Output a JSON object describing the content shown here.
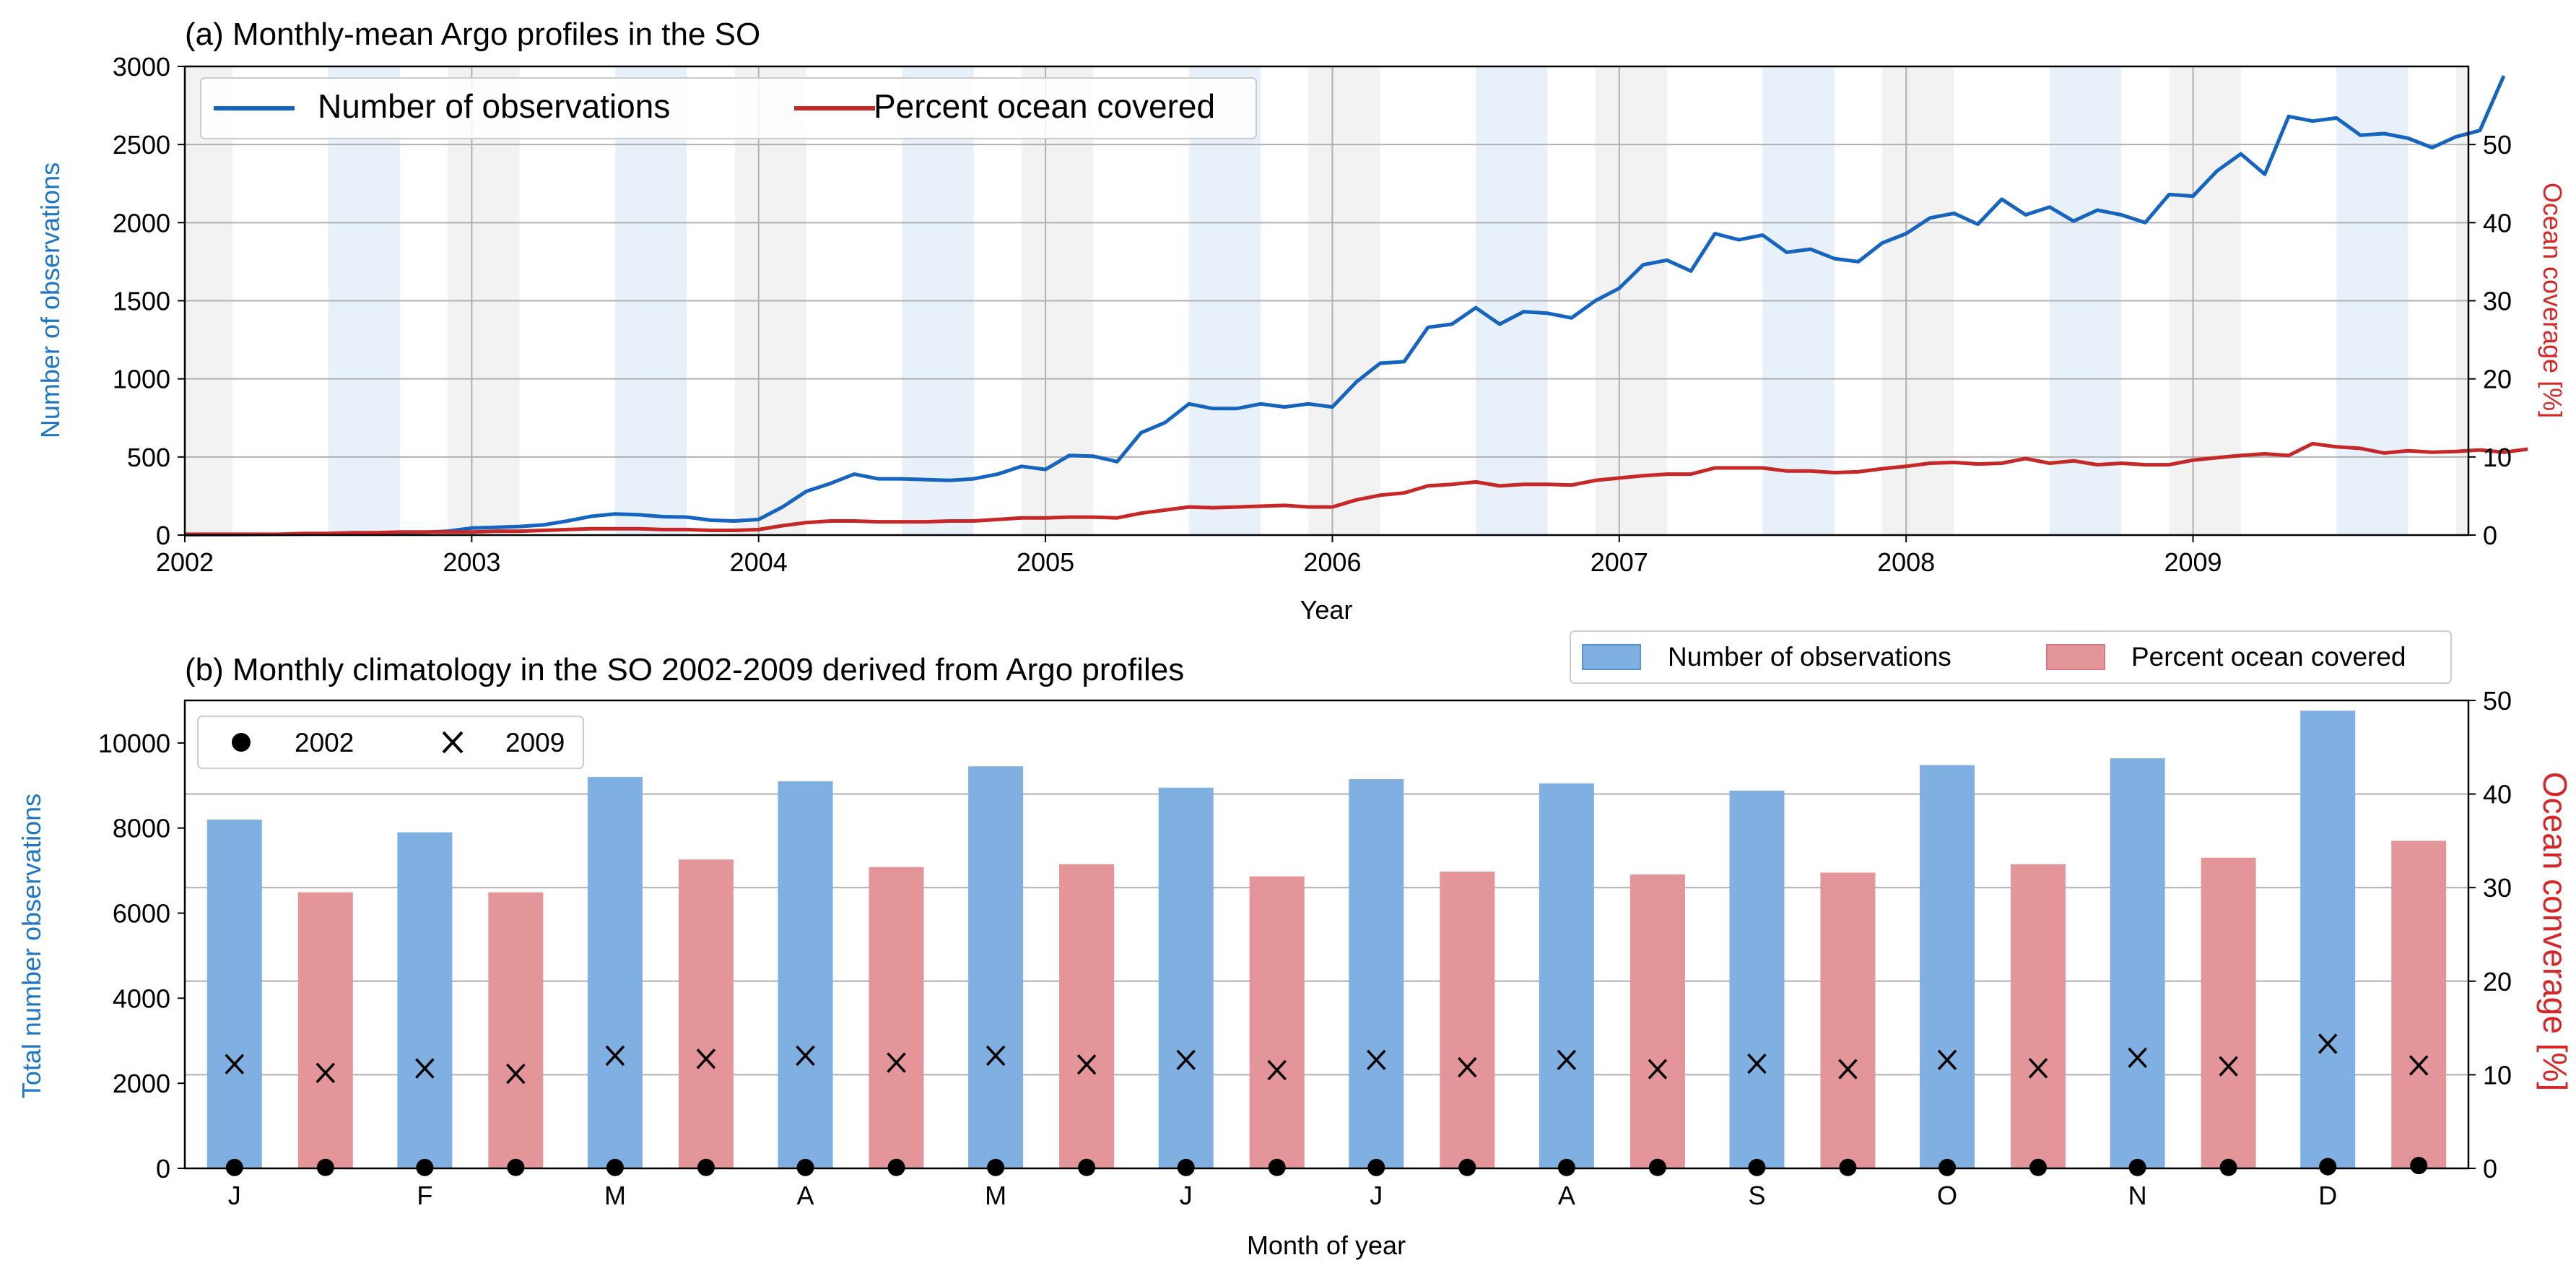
{
  "colors": {
    "obs_line": "#1565c0",
    "cov_line": "#c62828",
    "obs_bar": "#7fb0e1",
    "cov_bar": "#e4959a",
    "left_axis_label": "#1f77c4",
    "right_axis_label": "#d62728",
    "summer_shade": "#f2f2f2",
    "winter_shade": "#e8f1f9",
    "grid": "#b0b0b0"
  },
  "chart_data": [
    {
      "type": "line",
      "title": "(a) Monthly-mean Argo profiles in the SO",
      "xlabel": "Year",
      "ylabel_left": "Number of observations",
      "ylabel_right": "Ocean coverage [%]",
      "xlim": [
        2002.0,
        2009.96
      ],
      "ylim_left": [
        0,
        3000
      ],
      "ylim_right": [
        0,
        60
      ],
      "x_ticks": [
        "2002",
        "2003",
        "2004",
        "2005",
        "2006",
        "2007",
        "2008",
        "2009"
      ],
      "y_ticks_left": [
        "0",
        "500",
        "1000",
        "1500",
        "2000",
        "2500",
        "3000"
      ],
      "y_ticks_right": [
        "0",
        "10",
        "20",
        "30",
        "40",
        "50"
      ],
      "grid": true,
      "legend_position": "top-left",
      "shading": {
        "summer_months": [
          "Dec",
          "Jan",
          "Feb"
        ],
        "winter_months": [
          "Jul",
          "Aug",
          "Sep"
        ]
      },
      "start_month": "2002-01",
      "series": [
        {
          "name": "Number of observations",
          "axis": "left",
          "values": [
            2,
            3,
            3,
            4,
            5,
            6,
            8,
            10,
            12,
            15,
            18,
            25,
            45,
            50,
            55,
            65,
            90,
            120,
            135,
            130,
            118,
            115,
            95,
            90,
            100,
            180,
            280,
            330,
            390,
            360,
            360,
            355,
            350,
            360,
            390,
            440,
            420,
            510,
            505,
            470,
            655,
            720,
            840,
            810,
            810,
            840,
            820,
            840,
            820,
            980,
            1100,
            1110,
            1330,
            1350,
            1455,
            1350,
            1430,
            1420,
            1390,
            1500,
            1580,
            1730,
            1760,
            1690,
            1930,
            1890,
            1920,
            1810,
            1830,
            1770,
            1750,
            1870,
            1930,
            2030,
            2060,
            1990,
            2150,
            2050,
            2100,
            2010,
            2080,
            2050,
            2000,
            2180,
            2170,
            2330,
            2440,
            2310,
            2680,
            2650,
            2670,
            2560,
            2570,
            2540,
            2480,
            2550,
            2590,
            2940
          ]
        },
        {
          "name": "Percent ocean covered",
          "axis": "right",
          "values": [
            0.1,
            0.1,
            0.1,
            0.1,
            0.1,
            0.2,
            0.2,
            0.3,
            0.3,
            0.4,
            0.4,
            0.4,
            0.4,
            0.5,
            0.5,
            0.6,
            0.7,
            0.8,
            0.8,
            0.8,
            0.7,
            0.7,
            0.6,
            0.6,
            0.7,
            1.2,
            1.6,
            1.8,
            1.8,
            1.7,
            1.7,
            1.7,
            1.8,
            1.8,
            2.0,
            2.2,
            2.2,
            2.3,
            2.3,
            2.2,
            2.8,
            3.2,
            3.6,
            3.5,
            3.6,
            3.7,
            3.8,
            3.6,
            3.6,
            4.5,
            5.1,
            5.4,
            6.3,
            6.5,
            6.8,
            6.3,
            6.5,
            6.5,
            6.4,
            7.0,
            7.3,
            7.6,
            7.8,
            7.8,
            8.6,
            8.6,
            8.6,
            8.2,
            8.2,
            8.0,
            8.1,
            8.5,
            8.8,
            9.2,
            9.3,
            9.1,
            9.2,
            9.8,
            9.2,
            9.5,
            9.0,
            9.2,
            9.0,
            9.0,
            9.6,
            9.9,
            10.2,
            10.4,
            10.2,
            11.7,
            11.3,
            11.1,
            10.5,
            10.8,
            10.6,
            10.7,
            10.9,
            10.6,
            11.0
          ]
        }
      ]
    },
    {
      "type": "bar",
      "title": "(b) Monthly climatology in the SO 2002-2009 derived from Argo profiles",
      "xlabel": "Month of year",
      "ylabel_left": "Total number observations",
      "ylabel_right": "Ocean converage [%]",
      "categories": [
        "J",
        "F",
        "M",
        "A",
        "M",
        "J",
        "J",
        "A",
        "S",
        "O",
        "N",
        "D"
      ],
      "ylim_left": [
        0,
        11000
      ],
      "ylim_right": [
        0,
        50
      ],
      "y_ticks_left": [
        "0",
        "2000",
        "4000",
        "6000",
        "8000",
        "10000"
      ],
      "y_ticks_right": [
        "0",
        "10",
        "20",
        "30",
        "40",
        "50"
      ],
      "grid": true,
      "legend_position": "above-right",
      "marker_legend_position": "top-left",
      "series": [
        {
          "name": "Number of observations",
          "axis": "left",
          "values": [
            8200,
            7900,
            9200,
            9100,
            9450,
            8950,
            9150,
            9050,
            8880,
            9480,
            9640,
            10760
          ]
        },
        {
          "name": "Percent ocean covered",
          "axis": "right",
          "values": [
            29.5,
            29.5,
            33.0,
            32.2,
            32.5,
            31.2,
            31.7,
            31.4,
            31.6,
            32.5,
            33.2,
            35.0
          ]
        }
      ],
      "markers": [
        {
          "name": "2002",
          "symbol": "dot",
          "obs": [
            20,
            20,
            20,
            20,
            20,
            20,
            20,
            20,
            20,
            20,
            20,
            40
          ],
          "cov": [
            0.1,
            0.1,
            0.1,
            0.1,
            0.1,
            0.1,
            0.1,
            0.1,
            0.1,
            0.1,
            0.1,
            0.3
          ]
        },
        {
          "name": "2009",
          "symbol": "x",
          "obs": [
            2450,
            2350,
            2650,
            2650,
            2650,
            2550,
            2550,
            2550,
            2460,
            2550,
            2600,
            2930
          ],
          "cov": [
            10.2,
            10.1,
            11.7,
            11.3,
            11.1,
            10.5,
            10.8,
            10.6,
            10.6,
            10.7,
            10.9,
            11.0
          ]
        }
      ]
    }
  ]
}
